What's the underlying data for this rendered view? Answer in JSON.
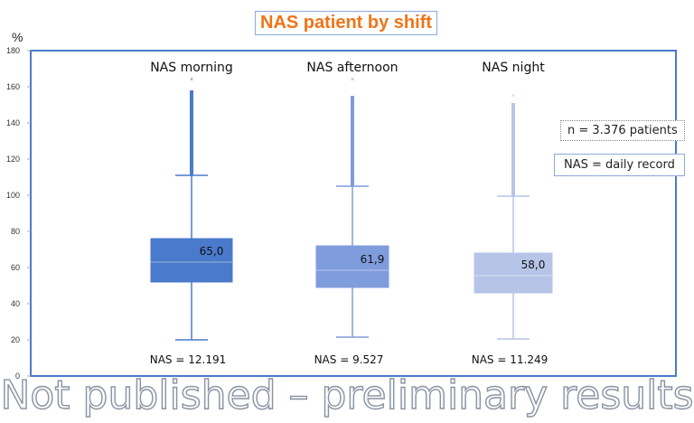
{
  "chart_data": {
    "type": "boxplot",
    "title": "NAS patient by shift",
    "ylabel": "%",
    "ylim": [
      0,
      180
    ],
    "yticks": [
      0,
      20,
      40,
      60,
      80,
      100,
      120,
      140,
      160,
      180
    ],
    "categories": [
      "NAS morning",
      "NAS afternoon",
      "NAS night"
    ],
    "series": [
      {
        "name": "NAS morning",
        "q1": 52,
        "median": 63,
        "q3": 76,
        "whisker_low": 20,
        "whisker_high": 111,
        "outlier_max": 164,
        "outlier_dense_to": 158,
        "mean_label": "65,0",
        "count_label": "NAS = 12.191",
        "color": "#4a7acb"
      },
      {
        "name": "NAS afternoon",
        "q1": 49,
        "median": 58.5,
        "q3": 72,
        "whisker_low": 21.5,
        "whisker_high": 105,
        "outlier_max": 164,
        "outlier_dense_to": 155,
        "mean_label": "61,9",
        "count_label": "NAS = 9.527",
        "color": "#7f9cdc"
      },
      {
        "name": "NAS night",
        "q1": 46,
        "median": 55.5,
        "q3": 68,
        "whisker_low": 20.5,
        "whisker_high": 99.5,
        "outlier_max": 155,
        "outlier_dense_to": 151,
        "mean_label": "58,0",
        "count_label": "NAS = 11.249",
        "color": "#b6c4e8"
      }
    ],
    "grid": false
  },
  "notes": {
    "patients": "n = 3.376 patients",
    "record": "NAS = daily record"
  },
  "watermark": "Not published – preliminary results"
}
